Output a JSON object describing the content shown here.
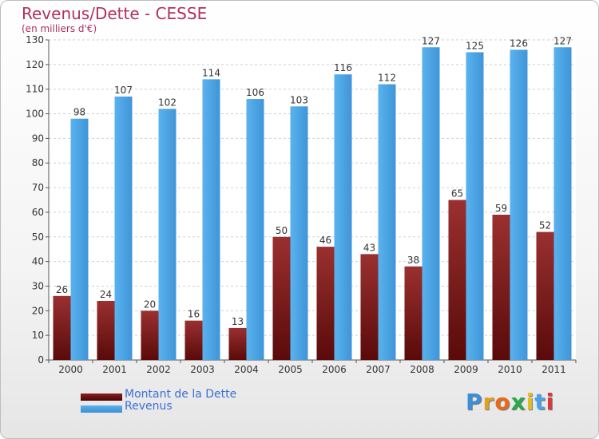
{
  "title": "Revenus/Dette - CESSE",
  "subtitle": "(en milliers d'€)",
  "colors": {
    "dette": "#7b1a1a",
    "revenus": "#4aa3e6",
    "title": "#b03060",
    "legend_text": "#3a6fd8"
  },
  "legend": [
    {
      "label": "Montant de la Dette"
    },
    {
      "label": "Revenus"
    }
  ],
  "logo": {
    "text": "Proxiti",
    "letters": [
      "P",
      "r",
      "o",
      "x",
      "i",
      "t",
      "i"
    ]
  },
  "chart_data": {
    "type": "bar",
    "categories": [
      "2000",
      "2001",
      "2002",
      "2003",
      "2004",
      "2005",
      "2006",
      "2007",
      "2008",
      "2009",
      "2010",
      "2011"
    ],
    "series": [
      {
        "name": "Montant de la Dette",
        "values": [
          26,
          24,
          20,
          16,
          13,
          50,
          46,
          43,
          38,
          65,
          59,
          52
        ]
      },
      {
        "name": "Revenus",
        "values": [
          98,
          107,
          102,
          114,
          106,
          103,
          116,
          112,
          127,
          125,
          126,
          127
        ]
      }
    ],
    "title": "Revenus/Dette - CESSE",
    "subtitle": "(en milliers d'€)",
    "ylim": [
      0,
      130
    ],
    "yticks": [
      0,
      10,
      20,
      30,
      40,
      50,
      60,
      70,
      80,
      90,
      100,
      110,
      120,
      130
    ],
    "grid": true,
    "legend_position": "bottom-left"
  }
}
